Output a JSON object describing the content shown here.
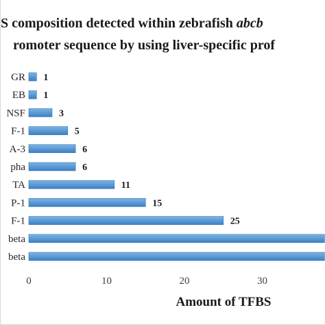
{
  "chart_data": {
    "type": "bar",
    "orientation": "horizontal",
    "title_lines": [
      "S composition detected within zebrafish abcb",
      "romoter sequence by using liver-specific prof"
    ],
    "categories": [
      "GR",
      "EB",
      "NSF",
      "F-1",
      "A-3",
      "pha",
      "TA",
      "P-1",
      "F-1",
      "beta",
      "beta"
    ],
    "values": [
      1,
      1,
      3,
      5,
      6,
      6,
      11,
      15,
      25,
      38,
      38
    ],
    "data_labels": [
      "1",
      "1",
      "3",
      "5",
      "6",
      "6",
      "11",
      "15",
      "25",
      "",
      ""
    ],
    "xlabel": "Amount of TFBS",
    "ylabel": "",
    "xticks": [
      "0",
      "10",
      "20",
      "30"
    ],
    "xlim": [
      0,
      38
    ],
    "grid": false,
    "legend": "none",
    "bar_color": "#5b9bd5",
    "bar_edge_color": "#2e75b6"
  }
}
